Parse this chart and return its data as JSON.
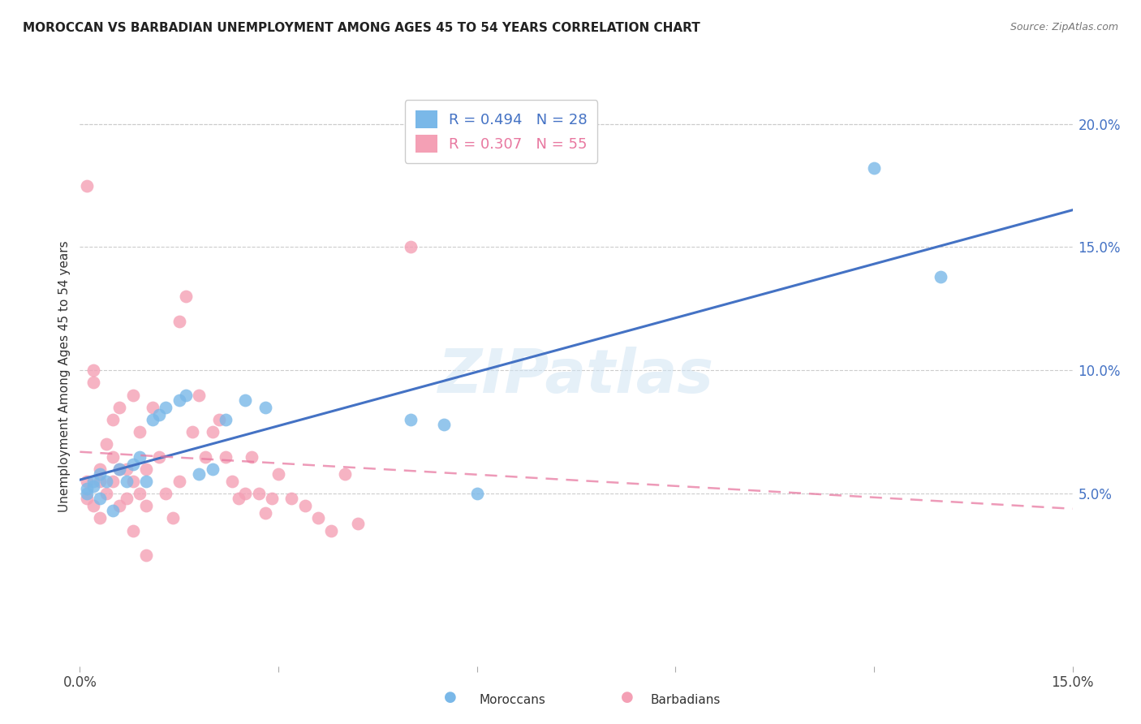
{
  "title": "MOROCCAN VS BARBADIAN UNEMPLOYMENT AMONG AGES 45 TO 54 YEARS CORRELATION CHART",
  "source": "Source: ZipAtlas.com",
  "ylabel": "Unemployment Among Ages 45 to 54 years",
  "xlim": [
    0,
    0.15
  ],
  "ylim": [
    -0.02,
    0.215
  ],
  "xticks": [
    0.0,
    0.05,
    0.1,
    0.15
  ],
  "xticklabels_show": [
    true,
    false,
    false,
    true
  ],
  "xticklabels": [
    "0.0%",
    "",
    "",
    "15.0%"
  ],
  "yticks_right": [
    0.05,
    0.1,
    0.15,
    0.2
  ],
  "yticklabels_right": [
    "5.0%",
    "10.0%",
    "15.0%",
    "20.0%"
  ],
  "moroccan_R": 0.494,
  "moroccan_N": 28,
  "barbadian_R": 0.307,
  "barbadian_N": 55,
  "moroccan_color": "#7ab8e8",
  "barbadian_color": "#f4a0b5",
  "moroccan_line_color": "#4472c4",
  "barbadian_line_color": "#e878a0",
  "moroccan_x": [
    0.001,
    0.001,
    0.002,
    0.002,
    0.003,
    0.003,
    0.004,
    0.005,
    0.006,
    0.007,
    0.008,
    0.009,
    0.01,
    0.011,
    0.012,
    0.013,
    0.015,
    0.016,
    0.018,
    0.02,
    0.022,
    0.025,
    0.028,
    0.05,
    0.055,
    0.06,
    0.12,
    0.13
  ],
  "moroccan_y": [
    0.05,
    0.052,
    0.053,
    0.055,
    0.048,
    0.058,
    0.055,
    0.043,
    0.06,
    0.055,
    0.062,
    0.065,
    0.055,
    0.08,
    0.082,
    0.085,
    0.088,
    0.09,
    0.058,
    0.06,
    0.08,
    0.088,
    0.085,
    0.08,
    0.078,
    0.05,
    0.182,
    0.138
  ],
  "barbadian_x": [
    0.001,
    0.001,
    0.001,
    0.002,
    0.002,
    0.002,
    0.003,
    0.003,
    0.003,
    0.004,
    0.004,
    0.005,
    0.005,
    0.005,
    0.006,
    0.006,
    0.006,
    0.007,
    0.007,
    0.008,
    0.008,
    0.008,
    0.009,
    0.009,
    0.01,
    0.01,
    0.01,
    0.011,
    0.012,
    0.013,
    0.014,
    0.015,
    0.015,
    0.016,
    0.017,
    0.018,
    0.019,
    0.02,
    0.021,
    0.022,
    0.023,
    0.024,
    0.025,
    0.026,
    0.027,
    0.028,
    0.029,
    0.03,
    0.032,
    0.034,
    0.036,
    0.038,
    0.04,
    0.042,
    0.05
  ],
  "barbadian_y": [
    0.175,
    0.055,
    0.048,
    0.1,
    0.095,
    0.045,
    0.06,
    0.055,
    0.04,
    0.05,
    0.07,
    0.065,
    0.08,
    0.055,
    0.085,
    0.06,
    0.045,
    0.06,
    0.048,
    0.09,
    0.055,
    0.035,
    0.075,
    0.05,
    0.06,
    0.045,
    0.025,
    0.085,
    0.065,
    0.05,
    0.04,
    0.12,
    0.055,
    0.13,
    0.075,
    0.09,
    0.065,
    0.075,
    0.08,
    0.065,
    0.055,
    0.048,
    0.05,
    0.065,
    0.05,
    0.042,
    0.048,
    0.058,
    0.048,
    0.045,
    0.04,
    0.035,
    0.058,
    0.038,
    0.15
  ],
  "watermark": "ZIPatlas",
  "legend_moroccan_label": "Moroccans",
  "legend_barbadian_label": "Barbadians",
  "background_color": "#ffffff",
  "grid_color": "#cccccc"
}
